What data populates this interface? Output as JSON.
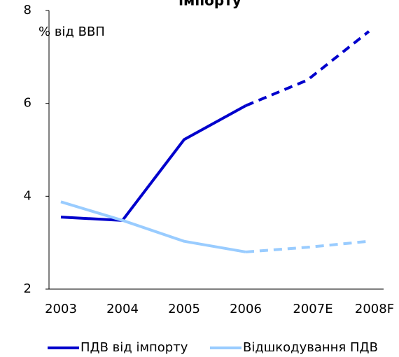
{
  "chart_data": {
    "type": "line",
    "title": "імпорту",
    "annotation": "% від ВВП",
    "categories": [
      "2003",
      "2004",
      "2005",
      "2006",
      "2007E",
      "2008F"
    ],
    "series": [
      {
        "name": "ПДВ від імпорту",
        "color": "#0000cc",
        "values": [
          3.55,
          3.48,
          5.22,
          5.95,
          6.5,
          7.55
        ]
      },
      {
        "name": "Відшкодування ПДВ",
        "color": "#99ccff",
        "values": [
          3.88,
          3.48,
          3.03,
          2.8,
          2.9,
          3.03
        ]
      }
    ],
    "dashed_from_index": 3,
    "ylim": [
      2,
      8
    ],
    "yticks": [
      2,
      4,
      6,
      8
    ],
    "grid": false
  }
}
